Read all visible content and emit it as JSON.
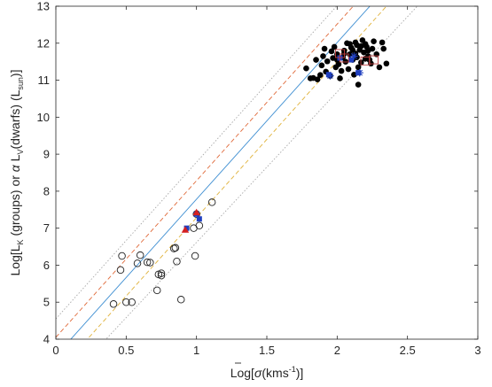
{
  "chart_data": {
    "type": "scatter",
    "xlabel_parts": {
      "main": "Log[",
      "sym": "σ",
      "unit_start": "(kms",
      "sup": "-1",
      "unit_end": ")]"
    },
    "ylabel_parts": {
      "lk": "Log[L",
      "lk_sub": "K",
      "mid": " (groups) or ",
      "alpha": "α",
      "lv": " L",
      "lv_sub": "V",
      "dwarfs": "(dwarfs) (L",
      "sun_sub": "sun",
      "end": ")]"
    },
    "xlim": [
      0,
      3
    ],
    "ylim": [
      4,
      13
    ],
    "xticks": [
      "0",
      "0.5",
      "1",
      "1.5",
      "2",
      "2.5",
      "3"
    ],
    "yticks": [
      "4",
      "5",
      "6",
      "7",
      "8",
      "9",
      "10",
      "11",
      "12",
      "13"
    ],
    "fit_lines": [
      {
        "style": "solid",
        "color": "#3f8fd2",
        "y_at_0": 3.55,
        "y_at_3": 16.25
      },
      {
        "style": "dashed",
        "color": "#e06a3a",
        "y_at_0": 4.05,
        "y_at_3": 16.75
      },
      {
        "style": "dashed",
        "color": "#e0b23a",
        "y_at_0": 3.05,
        "y_at_3": 15.75
      },
      {
        "style": "dotted",
        "color": "#a8a8a8",
        "y_at_0": 4.55,
        "y_at_3": 17.25
      },
      {
        "style": "dotted",
        "color": "#a8a8a8",
        "y_at_0": 2.55,
        "y_at_3": 14.75
      }
    ],
    "series": [
      {
        "marker": "open-circle",
        "points": [
          [
            0.41,
            4.95
          ],
          [
            0.46,
            5.87
          ],
          [
            0.47,
            6.25
          ],
          [
            0.5,
            5.0
          ],
          [
            0.54,
            5.0
          ],
          [
            0.58,
            6.05
          ],
          [
            0.6,
            6.27
          ],
          [
            0.65,
            6.08
          ],
          [
            0.67,
            6.07
          ],
          [
            0.72,
            5.32
          ],
          [
            0.73,
            5.75
          ],
          [
            0.75,
            5.72
          ],
          [
            0.75,
            5.78
          ],
          [
            0.84,
            6.45
          ],
          [
            0.86,
            6.1
          ],
          [
            0.89,
            5.07
          ],
          [
            0.85,
            6.47
          ],
          [
            0.98,
            7.0
          ],
          [
            0.99,
            6.25
          ],
          [
            1.0,
            7.38
          ],
          [
            1.02,
            7.07
          ],
          [
            1.11,
            7.7
          ]
        ]
      },
      {
        "marker": "filled-circle",
        "points": [
          [
            1.78,
            11.32
          ],
          [
            1.81,
            11.05
          ],
          [
            1.83,
            11.06
          ],
          [
            1.85,
            11.55
          ],
          [
            1.86,
            11.02
          ],
          [
            1.88,
            11.14
          ],
          [
            1.89,
            11.4
          ],
          [
            1.9,
            11.65
          ],
          [
            1.91,
            11.85
          ],
          [
            1.92,
            11.23
          ],
          [
            1.93,
            11.51
          ],
          [
            1.95,
            11.12
          ],
          [
            1.96,
            11.78
          ],
          [
            1.97,
            11.6
          ],
          [
            1.98,
            11.9
          ],
          [
            1.99,
            11.35
          ],
          [
            2.0,
            11.7
          ],
          [
            2.01,
            11.43
          ],
          [
            2.02,
            11.05
          ],
          [
            2.03,
            11.25
          ],
          [
            2.04,
            11.62
          ],
          [
            2.05,
            11.8
          ],
          [
            2.06,
            11.5
          ],
          [
            2.07,
            12.0
          ],
          [
            2.08,
            11.3
          ],
          [
            2.09,
            11.7
          ],
          [
            2.1,
            11.88
          ],
          [
            2.11,
            11.55
          ],
          [
            2.12,
            11.15
          ],
          [
            2.13,
            11.72
          ],
          [
            2.13,
            12.02
          ],
          [
            2.14,
            11.62
          ],
          [
            2.15,
            11.35
          ],
          [
            2.15,
            10.88
          ],
          [
            2.16,
            11.82
          ],
          [
            2.17,
            11.48
          ],
          [
            2.18,
            12.08
          ],
          [
            2.19,
            11.75
          ],
          [
            2.2,
            11.58
          ],
          [
            2.21,
            11.9
          ],
          [
            2.22,
            11.65
          ],
          [
            2.23,
            11.55
          ],
          [
            2.24,
            11.45
          ],
          [
            2.25,
            11.85
          ],
          [
            2.26,
            12.05
          ],
          [
            2.28,
            11.7
          ],
          [
            2.3,
            11.35
          ],
          [
            2.32,
            12.02
          ],
          [
            2.33,
            11.85
          ],
          [
            2.35,
            11.45
          ],
          [
            2.05,
            11.72
          ],
          [
            2.09,
            11.98
          ],
          [
            2.11,
            11.82
          ],
          [
            2.14,
            11.95
          ],
          [
            2.17,
            11.92
          ],
          [
            2.2,
            11.98
          ],
          [
            2.22,
            11.8
          ],
          [
            2.0,
            11.55
          ]
        ]
      },
      {
        "marker": "filled-square-blue",
        "color": "#1f3fbf",
        "points": [
          [
            0.93,
            7.0
          ],
          [
            1.0,
            7.38
          ],
          [
            1.02,
            7.25
          ],
          [
            1.94,
            11.15
          ],
          [
            2.02,
            11.6
          ],
          [
            2.1,
            11.55
          ],
          [
            2.15,
            11.2
          ]
        ]
      },
      {
        "marker": "filled-triangle-red",
        "color": "#d42020",
        "points": [
          [
            0.92,
            6.95
          ],
          [
            1.0,
            7.42
          ]
        ]
      },
      {
        "marker": "open-square-red",
        "color": "#c04040",
        "points": [
          [
            2.02,
            11.72
          ],
          [
            2.05,
            11.6
          ],
          [
            2.2,
            11.52
          ],
          [
            2.26,
            11.55
          ]
        ]
      },
      {
        "marker": "star-blue",
        "color": "#1f3fbf",
        "points": [
          [
            1.95,
            11.12
          ],
          [
            2.12,
            11.65
          ],
          [
            2.16,
            11.2
          ]
        ]
      }
    ]
  }
}
